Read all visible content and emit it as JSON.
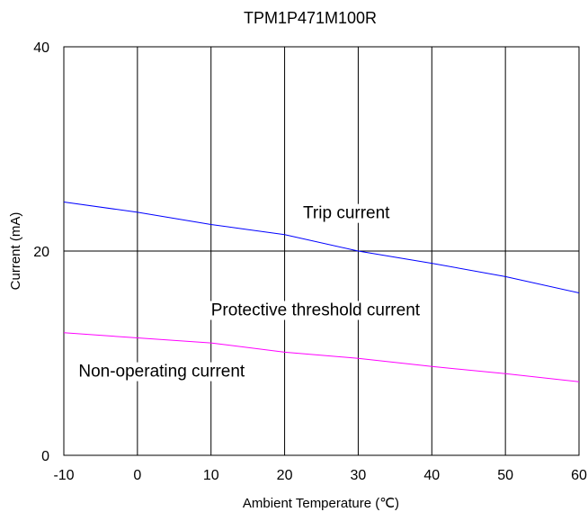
{
  "chart_data": {
    "type": "line",
    "title": "TPM1P471M100R",
    "xlabel": "Ambient Temperature (℃)",
    "ylabel": "Current (mA)",
    "xlim": [
      -10,
      60
    ],
    "ylim": [
      0,
      40
    ],
    "x_ticks": [
      -10,
      0,
      10,
      20,
      30,
      40,
      50,
      60
    ],
    "y_ticks": [
      0,
      20,
      40
    ],
    "grid": true,
    "series": [
      {
        "name": "Trip current",
        "color": "#0000ff",
        "x": [
          -10,
          0,
          10,
          20,
          30,
          40,
          50,
          60
        ],
        "y": [
          24.8,
          23.8,
          22.6,
          21.6,
          20.0,
          18.8,
          17.5,
          15.9
        ]
      },
      {
        "name": "Non-operating current",
        "color": "#ff00ff",
        "x": [
          -10,
          0,
          10,
          20,
          30,
          40,
          50,
          60
        ],
        "y": [
          12.0,
          11.5,
          11.0,
          10.1,
          9.5,
          8.7,
          8.0,
          7.2
        ]
      }
    ],
    "annotations": [
      {
        "text": "Trip current",
        "x": 22.5,
        "y": 23.2
      },
      {
        "text": "Protective threshold current",
        "x": 10,
        "y": 13.7
      },
      {
        "text": "Non-operating current",
        "x": -8,
        "y": 7.7
      }
    ]
  }
}
